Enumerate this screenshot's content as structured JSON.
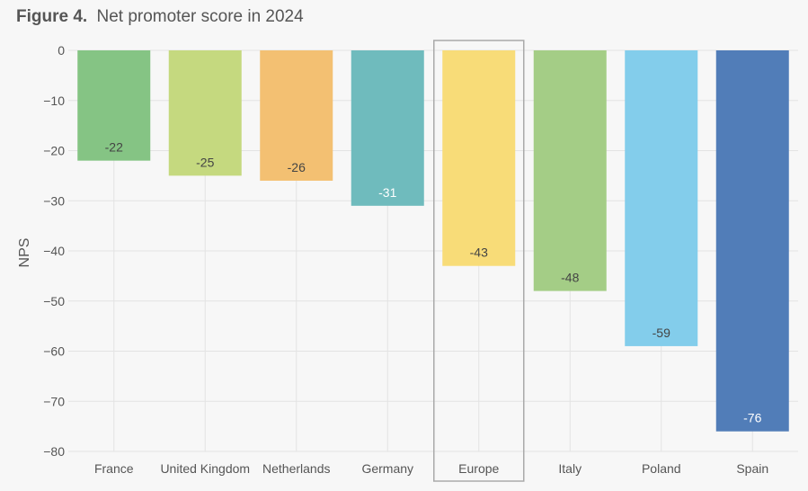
{
  "chart_data": {
    "type": "bar",
    "title_prefix": "Figure 4.",
    "title": "Net promoter score in 2024",
    "xlabel": "",
    "ylabel": "NPS",
    "ylim": [
      -80,
      0
    ],
    "yticks": [
      0,
      -10,
      -20,
      -30,
      -40,
      -50,
      -60,
      -70,
      -80
    ],
    "ytick_labels": [
      "0",
      "−10",
      "−20",
      "−30",
      "−40",
      "−50",
      "−60",
      "−70",
      "−80"
    ],
    "grid": true,
    "categories": [
      "France",
      "United Kingdom",
      "Netherlands",
      "Germany",
      "Europe",
      "Italy",
      "Poland",
      "Spain"
    ],
    "values": [
      -22,
      -25,
      -26,
      -31,
      -43,
      -48,
      -59,
      -76
    ],
    "value_labels": [
      "-22",
      "-25",
      "-26",
      "-31",
      "-43",
      "-48",
      "-59",
      "-76"
    ],
    "colors": [
      "#85c484",
      "#c5d97f",
      "#f3c072",
      "#6fbbbd",
      "#f8dc78",
      "#a4cd86",
      "#83cdeb",
      "#517db8"
    ],
    "label_colors": [
      "#444444",
      "#444444",
      "#444444",
      "#ffffff",
      "#444444",
      "#444444",
      "#444444",
      "#ffffff"
    ],
    "highlighted_category": "Europe"
  }
}
